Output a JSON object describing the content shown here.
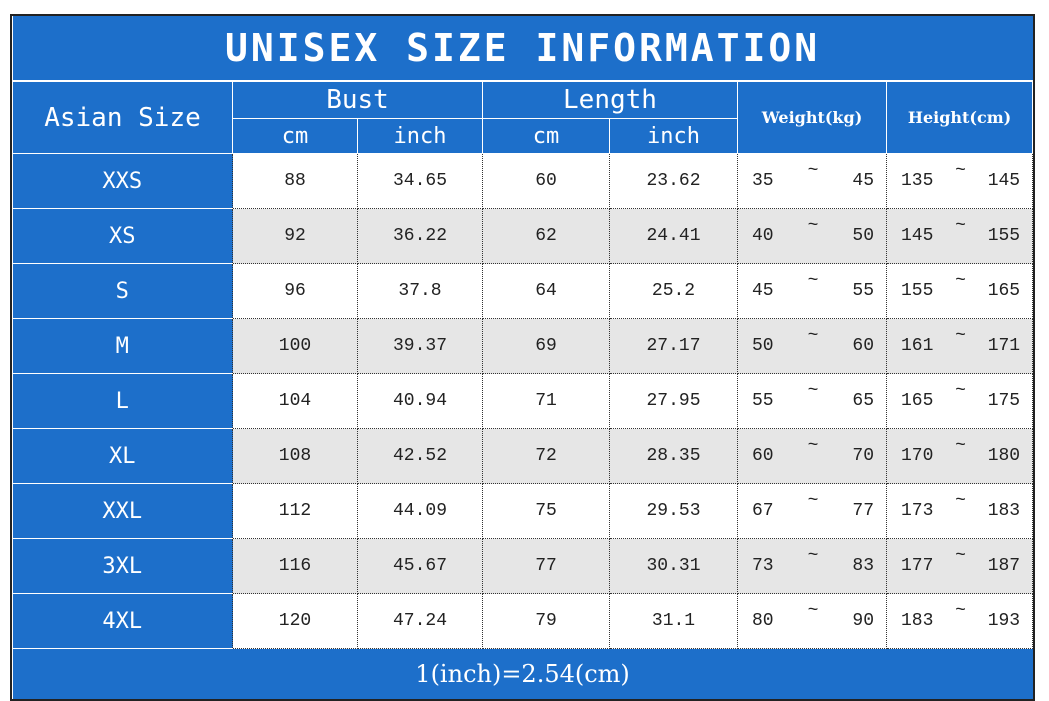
{
  "title": "UNISEX SIZE INFORMATION",
  "header": {
    "size": "Asian Size",
    "bust": "Bust",
    "length": "Length",
    "weight": "Weight(kg)",
    "height": "Height(cm)"
  },
  "subheaders": [
    "cm",
    "inch",
    "cm",
    "inch"
  ],
  "range_separator": "~",
  "rows": [
    [
      "XXS",
      "88",
      "34.65",
      "60",
      "23.62",
      "35",
      "45",
      "135",
      "145"
    ],
    [
      "XS",
      "92",
      "36.22",
      "62",
      "24.41",
      "40",
      "50",
      "145",
      "155"
    ],
    [
      "S",
      "96",
      "37.8",
      "64",
      "25.2",
      "45",
      "55",
      "155",
      "165"
    ],
    [
      "M",
      "100",
      "39.37",
      "69",
      "27.17",
      "50",
      "60",
      "161",
      "171"
    ],
    [
      "L",
      "104",
      "40.94",
      "71",
      "27.95",
      "55",
      "65",
      "165",
      "175"
    ],
    [
      "XL",
      "108",
      "42.52",
      "72",
      "28.35",
      "60",
      "70",
      "170",
      "180"
    ],
    [
      "XXL",
      "112",
      "44.09",
      "75",
      "29.53",
      "67",
      "77",
      "173",
      "183"
    ],
    [
      "3XL",
      "116",
      "45.67",
      "77",
      "30.31",
      "73",
      "83",
      "177",
      "187"
    ],
    [
      "4XL",
      "120",
      "47.24",
      "79",
      "31.1",
      "80",
      "90",
      "183",
      "193"
    ]
  ],
  "footer": "1(inch)=2.54(cm)"
}
